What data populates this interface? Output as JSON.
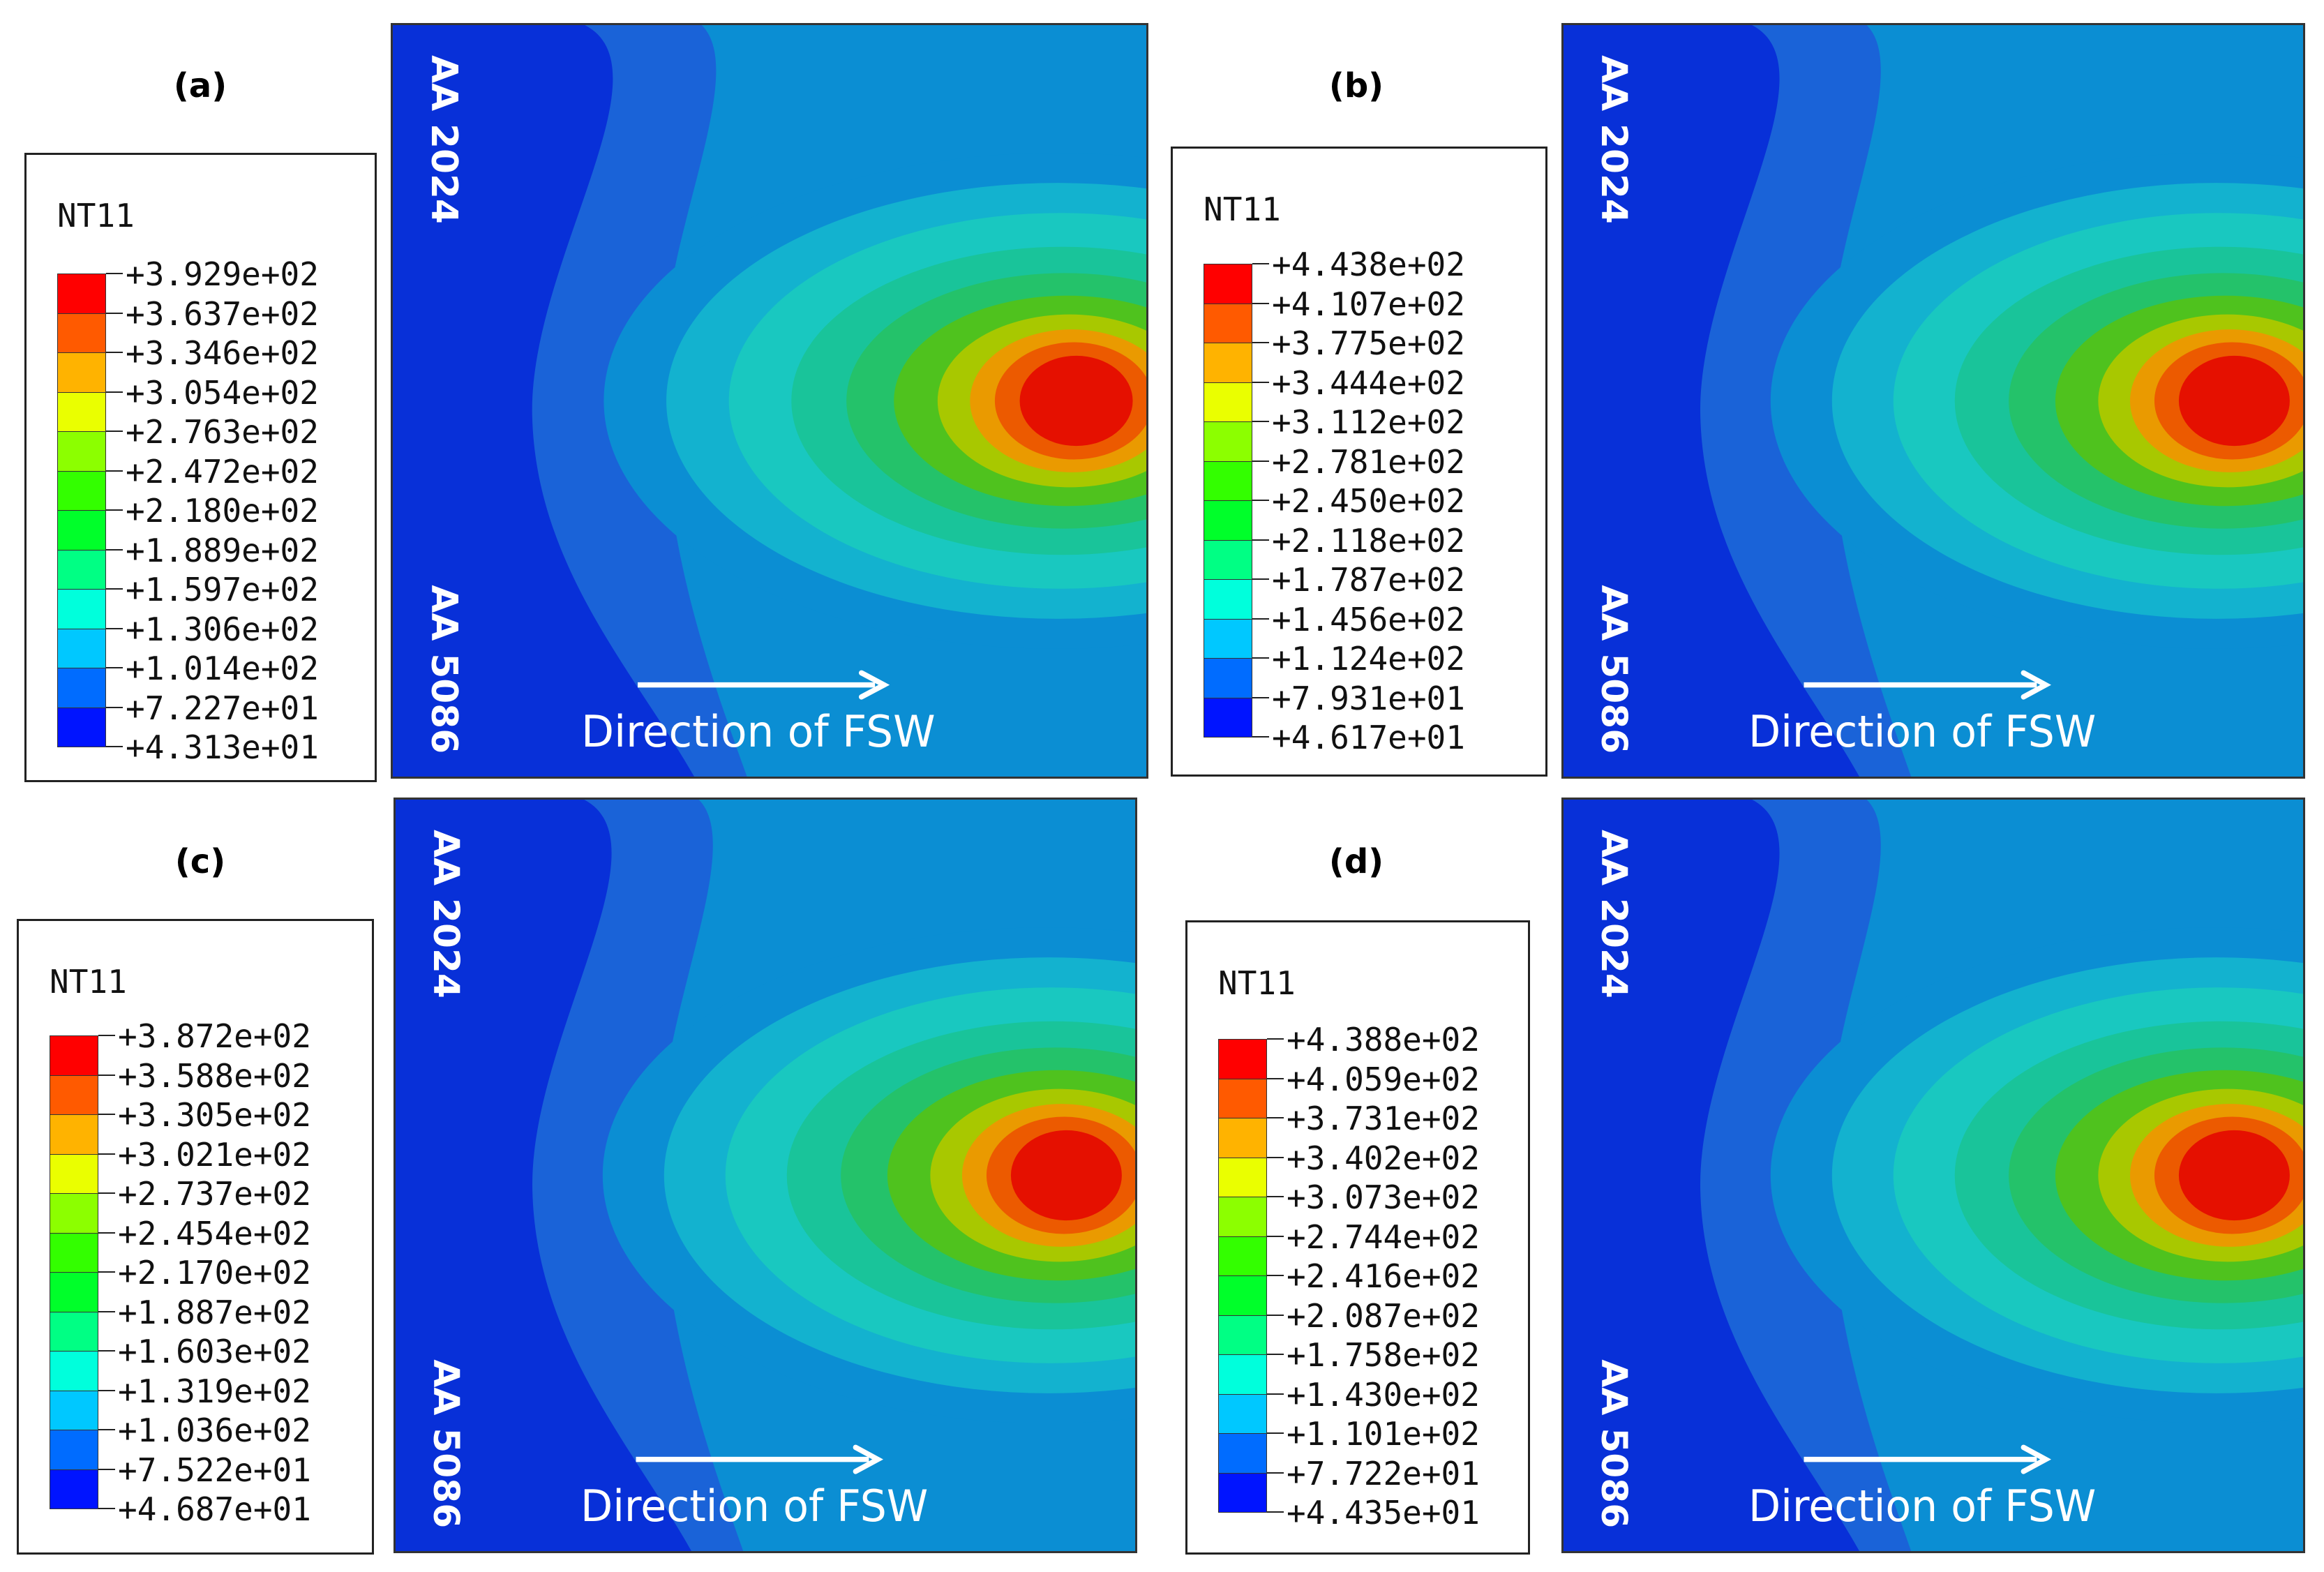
{
  "chart_data": [
    {
      "type": "contour",
      "panel": "(a)",
      "legend_title": "NT11",
      "levels": [
        "+3.929e+02",
        "+3.637e+02",
        "+3.346e+02",
        "+3.054e+02",
        "+2.763e+02",
        "+2.472e+02",
        "+2.180e+02",
        "+1.889e+02",
        "+1.597e+02",
        "+1.306e+02",
        "+1.014e+02",
        "+7.227e+01",
        "+4.313e+01"
      ],
      "max": 392.9,
      "min": 43.13,
      "label_top": "AA 2024",
      "label_bottom": "AA 5086",
      "direction_label": "Direction of FSW"
    },
    {
      "type": "contour",
      "panel": "(b)",
      "legend_title": "NT11",
      "levels": [
        "+4.438e+02",
        "+4.107e+02",
        "+3.775e+02",
        "+3.444e+02",
        "+3.112e+02",
        "+2.781e+02",
        "+2.450e+02",
        "+2.118e+02",
        "+1.787e+02",
        "+1.456e+02",
        "+1.124e+02",
        "+7.931e+01",
        "+4.617e+01"
      ],
      "max": 443.8,
      "min": 46.17,
      "label_top": "AA 2024",
      "label_bottom": "AA 5086",
      "direction_label": "Direction of FSW"
    },
    {
      "type": "contour",
      "panel": "(c)",
      "legend_title": "NT11",
      "levels": [
        "+3.872e+02",
        "+3.588e+02",
        "+3.305e+02",
        "+3.021e+02",
        "+2.737e+02",
        "+2.454e+02",
        "+2.170e+02",
        "+1.887e+02",
        "+1.603e+02",
        "+1.319e+02",
        "+1.036e+02",
        "+7.522e+01",
        "+4.687e+01"
      ],
      "max": 387.2,
      "min": 46.87,
      "label_top": "AA 2024",
      "label_bottom": "AA 5086",
      "direction_label": "Direction of FSW"
    },
    {
      "type": "contour",
      "panel": "(d)",
      "legend_title": "NT11",
      "levels": [
        "+4.388e+02",
        "+4.059e+02",
        "+3.731e+02",
        "+3.402e+02",
        "+3.073e+02",
        "+2.744e+02",
        "+2.416e+02",
        "+2.087e+02",
        "+1.758e+02",
        "+1.430e+02",
        "+1.101e+02",
        "+7.722e+01",
        "+4.435e+01"
      ],
      "max": 438.8,
      "min": 44.35,
      "label_top": "AA 2024",
      "label_bottom": "AA 5086",
      "direction_label": "Direction of FSW"
    }
  ],
  "colormap": [
    "#ff0000",
    "#ff5a00",
    "#ffb300",
    "#eaff00",
    "#8cff00",
    "#33ff00",
    "#00ff2a",
    "#00ff84",
    "#00ffdc",
    "#00c8ff",
    "#006cff",
    "#0014ff"
  ]
}
